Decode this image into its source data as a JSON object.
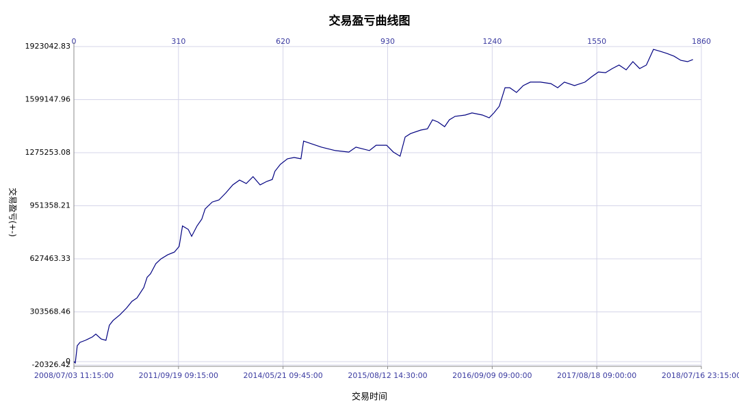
{
  "chart_data": {
    "type": "line",
    "title": "交易盈亏曲线图",
    "xlabel": "交易时间",
    "ylabel": "交易盈亏(+-)",
    "x": [
      0,
      4,
      10,
      18,
      34,
      55,
      65,
      81,
      95,
      105,
      116,
      136,
      156,
      172,
      187,
      207,
      217,
      227,
      243,
      258,
      278,
      298,
      312,
      322,
      339,
      349,
      365,
      379,
      389,
      410,
      430,
      450,
      471,
      491,
      511,
      531,
      552,
      572,
      588,
      596,
      612,
      633,
      653,
      673,
      681,
      704,
      734,
      775,
      815,
      836,
      876,
      896,
      927,
      947,
      967,
      982,
      998,
      1028,
      1048,
      1063,
      1079,
      1099,
      1113,
      1130,
      1160,
      1180,
      1211,
      1231,
      1245,
      1261,
      1278,
      1292,
      1312,
      1332,
      1353,
      1383,
      1414,
      1434,
      1454,
      1484,
      1515,
      1535,
      1555,
      1576,
      1596,
      1616,
      1637,
      1657,
      1677,
      1697,
      1718,
      1738,
      1758,
      1779,
      1799,
      1819,
      1835
    ],
    "values": [
      0,
      -8000,
      97000,
      117600,
      130000,
      151000,
      168000,
      138000,
      130000,
      222000,
      251000,
      285000,
      327000,
      368000,
      389000,
      452000,
      515000,
      536000,
      598000,
      627000,
      652000,
      669000,
      703000,
      828000,
      807000,
      765000,
      828000,
      870000,
      932000,
      974000,
      987000,
      1029000,
      1079000,
      1108000,
      1087000,
      1129000,
      1079000,
      1100000,
      1112000,
      1162000,
      1204000,
      1238000,
      1246000,
      1238000,
      1346000,
      1330000,
      1309000,
      1288000,
      1279000,
      1309000,
      1288000,
      1321000,
      1321000,
      1279000,
      1254000,
      1371000,
      1392000,
      1413000,
      1421000,
      1476000,
      1463000,
      1434000,
      1476000,
      1497000,
      1505000,
      1518000,
      1505000,
      1488000,
      1518000,
      1559000,
      1672000,
      1672000,
      1643000,
      1685000,
      1706000,
      1706000,
      1697000,
      1672000,
      1706000,
      1685000,
      1706000,
      1739000,
      1768000,
      1764000,
      1789000,
      1810000,
      1781000,
      1831000,
      1789000,
      1810000,
      1906000,
      1894000,
      1881000,
      1864000,
      1839000,
      1831000,
      1844000
    ],
    "color": "#000080",
    "xlim": [
      0,
      1860
    ],
    "xticks": [
      0,
      310,
      620,
      930,
      1240,
      1550,
      1860
    ],
    "x2ticks": [
      {
        "value": 0,
        "label": "2008/07/03 11:15:00"
      },
      {
        "value": 310,
        "label": "2011/09/19 09:15:00"
      },
      {
        "value": 620,
        "label": "2014/05/21 09:45:00"
      },
      {
        "value": 930,
        "label": "2015/08/12 14:30:00"
      },
      {
        "value": 1240,
        "label": "2016/09/09 09:00:00"
      },
      {
        "value": 1550,
        "label": "2017/08/18 09:00:00"
      },
      {
        "value": 1860,
        "label": "2018/07/16 23:15:00"
      }
    ],
    "ylim": [
      -20326.42,
      1923042.83
    ],
    "yticks": [
      -20326.42,
      0,
      303568.46,
      627463.33,
      951358.21,
      1275253.08,
      1599147.96,
      1923042.83
    ],
    "grid": true
  }
}
